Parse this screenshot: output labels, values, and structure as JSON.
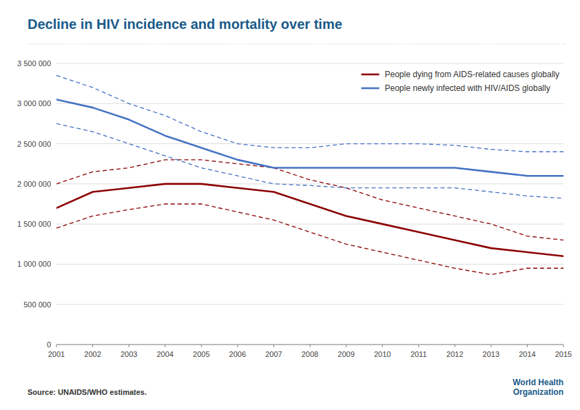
{
  "chart_data": {
    "type": "line",
    "title": "Decline in HIV incidence and mortality over time",
    "annotations": [
      "Source: UNAIDS/WHO estimates.",
      "World Health\nOrganization"
    ],
    "x": [
      2001,
      2002,
      2003,
      2004,
      2005,
      2006,
      2007,
      2008,
      2009,
      2010,
      2011,
      2012,
      2013,
      2014,
      2015
    ],
    "xlim": [
      2001,
      2015
    ],
    "xticks": [
      2001,
      2002,
      2003,
      2004,
      2005,
      2006,
      2007,
      2008,
      2009,
      2010,
      2011,
      2012,
      2013,
      2014,
      2015
    ],
    "ylim": [
      0,
      3500000
    ],
    "yticks": [
      0,
      {
        "value": 500000,
        "label": "500 000"
      },
      {
        "value": 1000000,
        "label": "1 000 000"
      },
      {
        "value": 1500000,
        "label": "1 500 000"
      },
      {
        "value": 2000000,
        "label": "2 000 000"
      },
      {
        "value": 2500000,
        "label": "2 500 000"
      },
      {
        "value": 3000000,
        "label": "3 000 000"
      },
      {
        "value": 3500000,
        "label": "3 500 000"
      }
    ],
    "grid": true,
    "legend": "upper right",
    "series": [
      {
        "color": "#8B0000",
        "line_style": "dashed",
        "values": [
          2000000,
          2150000,
          2200000,
          2300000,
          2300000,
          2250000,
          2200000,
          2050000,
          1950000,
          1800000,
          1700000,
          1600000,
          1500000,
          1350000,
          1300000
        ]
      },
      {
        "color": "#8B0000",
        "line_style": "dashed",
        "values": [
          1450000,
          1600000,
          1680000,
          1750000,
          1750000,
          1650000,
          1550000,
          1400000,
          1250000,
          1150000,
          1050000,
          950000,
          870000,
          950000,
          950000
        ]
      },
      {
        "name": "People dying from AIDS-related causes globally",
        "color": "#8B0000",
        "line_style": "solid",
        "values": [
          1700000,
          1900000,
          1950000,
          2000000,
          2000000,
          1950000,
          1900000,
          1750000,
          1600000,
          1500000,
          1400000,
          1300000,
          1200000,
          1150000,
          1100000
        ]
      },
      {
        "color": "#4472C4",
        "line_style": "dashed",
        "values": [
          3350000,
          3200000,
          3000000,
          2850000,
          2650000,
          2500000,
          2450000,
          2450000,
          2500000,
          2500000,
          2500000,
          2480000,
          2430000,
          2400000,
          2400000
        ]
      },
      {
        "color": "#4472C4",
        "line_style": "dashed",
        "values": [
          2750000,
          2650000,
          2500000,
          2350000,
          2200000,
          2100000,
          2000000,
          1980000,
          1950000,
          1950000,
          1950000,
          1950000,
          1900000,
          1850000,
          1820000
        ]
      },
      {
        "name": "People newly infected with HIV/AIDS globally",
        "color": "#4472C4",
        "line_style": "solid",
        "values": [
          3050000,
          2950000,
          2800000,
          2600000,
          2450000,
          2300000,
          2200000,
          2200000,
          2200000,
          2200000,
          2200000,
          2200000,
          2150000,
          2100000,
          2100000
        ]
      }
    ]
  }
}
